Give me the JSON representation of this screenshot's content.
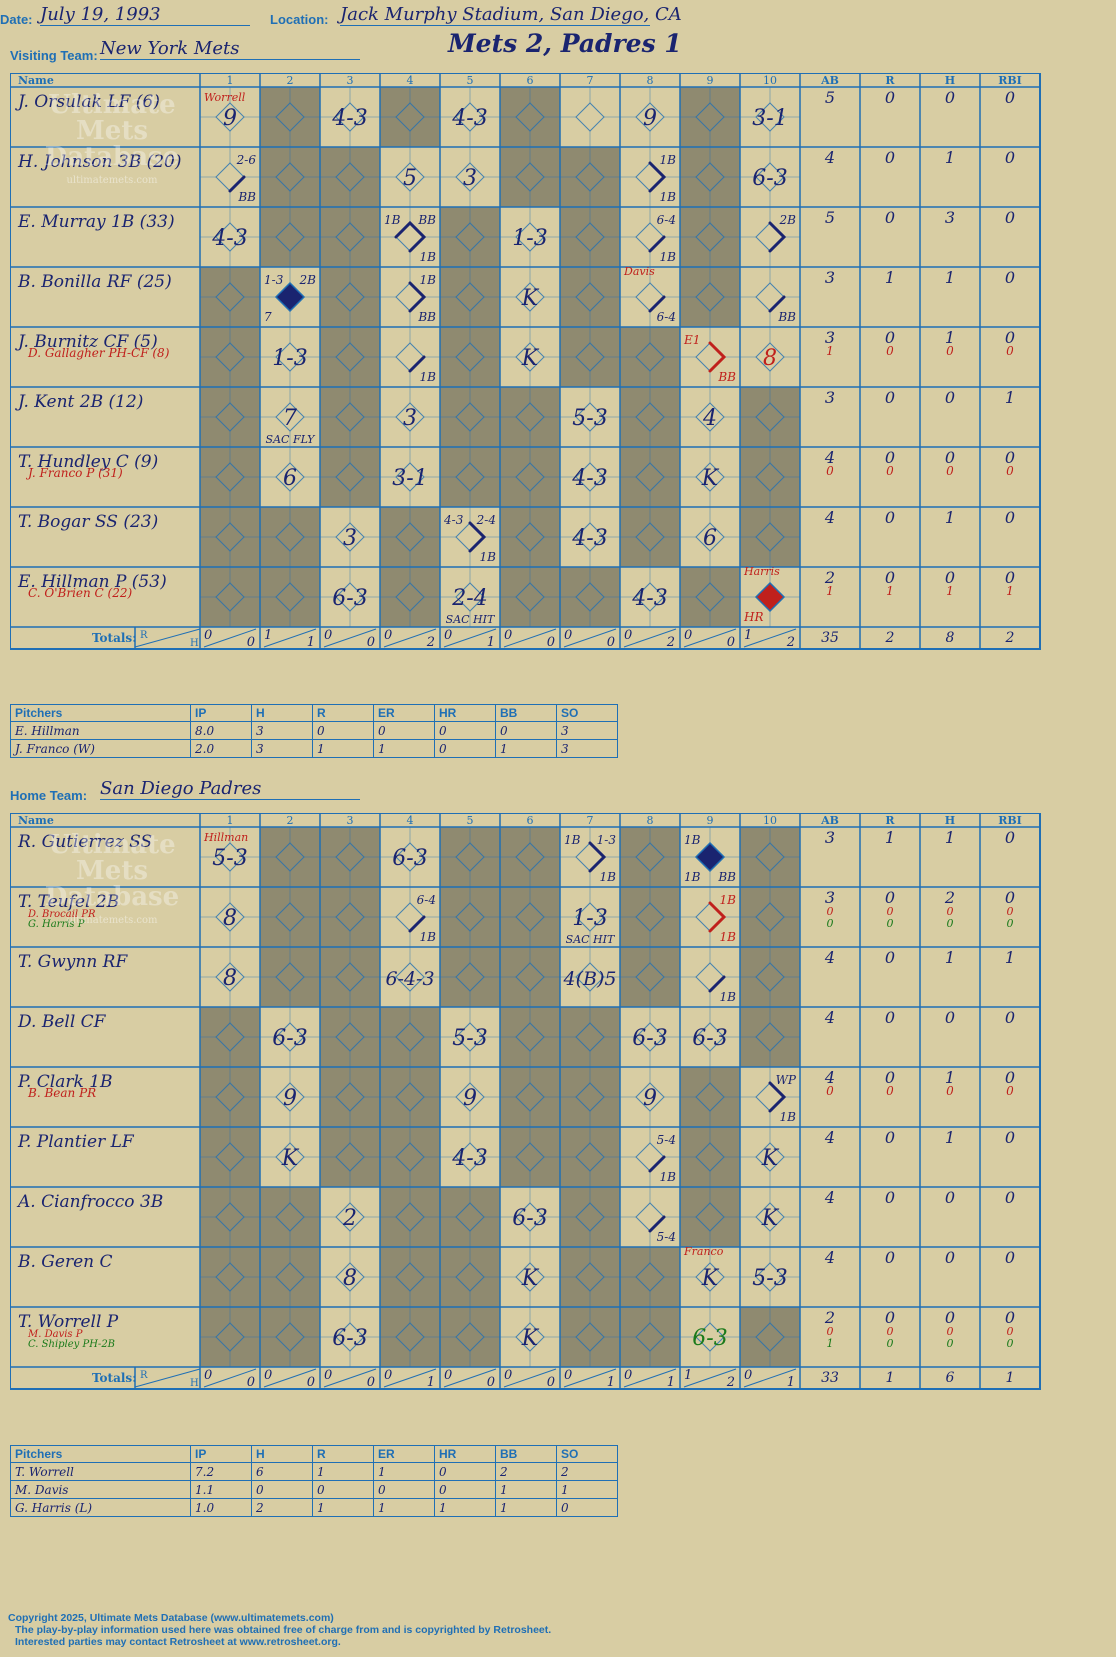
{
  "header": {
    "date_label": "Date:",
    "date": "July 19, 1993",
    "location_label": "Location:",
    "location": "Jack Murphy Stadium, San Diego, CA",
    "visiting_label": "Visiting Team:",
    "visiting_team": "New York Mets",
    "home_label": "Home Team:",
    "home_team": "San Diego Padres",
    "title": "Mets 2, Padres 1"
  },
  "watermark": [
    "Ultimate",
    "Mets",
    "Database",
    "ultimatemets.com"
  ],
  "grid_headers": {
    "name": "Name",
    "innings": [
      "1",
      "2",
      "3",
      "4",
      "5",
      "6",
      "7",
      "8",
      "9",
      "10"
    ],
    "stats": [
      "AB",
      "R",
      "H",
      "RBI"
    ],
    "totals": "Totals:",
    "r": "R",
    "h": "H"
  },
  "colors": {
    "ink": "#1a2470",
    "line": "#1f6fb5",
    "shade": "#8f8a70",
    "red": "#c0201c",
    "green": "#1a7a1a",
    "bg": "#d8cda3"
  },
  "visitors": {
    "players": [
      {
        "names": [
          "J. Orsulak LF (6)"
        ],
        "stats": [
          [
            "5",
            "0",
            "0",
            "0"
          ]
        ]
      },
      {
        "names": [
          "H. Johnson 3B (20)"
        ],
        "stats": [
          [
            "4",
            "0",
            "1",
            "0"
          ]
        ]
      },
      {
        "names": [
          "E. Murray 1B (33)"
        ],
        "stats": [
          [
            "5",
            "0",
            "3",
            "0"
          ]
        ]
      },
      {
        "names": [
          "B. Bonilla RF (25)"
        ],
        "stats": [
          [
            "3",
            "1",
            "1",
            "0"
          ]
        ]
      },
      {
        "names": [
          "J. Burnitz CF (5)",
          "D. Gallagher PH-CF (8)"
        ],
        "stats": [
          [
            "3",
            "0",
            "1",
            "0"
          ],
          [
            "1",
            "0",
            "0",
            "0"
          ]
        ]
      },
      {
        "names": [
          "J. Kent 2B (12)"
        ],
        "stats": [
          [
            "3",
            "0",
            "0",
            "1"
          ]
        ]
      },
      {
        "names": [
          "T. Hundley C (9)",
          "J. Franco P (31)"
        ],
        "stats": [
          [
            "4",
            "0",
            "0",
            "0"
          ],
          [
            "0",
            "0",
            "0",
            "0"
          ]
        ]
      },
      {
        "names": [
          "T. Bogar SS (23)"
        ],
        "stats": [
          [
            "4",
            "0",
            "1",
            "0"
          ]
        ]
      },
      {
        "names": [
          "E. Hillman P (53)",
          "C. O'Brien C (22)"
        ],
        "stats": [
          [
            "2",
            "0",
            "0",
            "0"
          ],
          [
            "1",
            "1",
            "1",
            "1"
          ]
        ]
      }
    ],
    "shaded": [
      [
        0,
        1,
        0,
        1,
        0,
        1,
        0,
        0,
        1,
        0
      ],
      [
        0,
        1,
        1,
        0,
        0,
        1,
        1,
        0,
        1,
        0
      ],
      [
        0,
        1,
        1,
        0,
        1,
        0,
        1,
        0,
        1,
        0
      ],
      [
        1,
        0,
        1,
        0,
        1,
        0,
        1,
        0,
        1,
        0
      ],
      [
        1,
        0,
        1,
        0,
        1,
        0,
        1,
        1,
        0,
        0
      ],
      [
        1,
        0,
        1,
        0,
        1,
        1,
        0,
        1,
        0,
        1
      ],
      [
        1,
        0,
        1,
        0,
        1,
        1,
        0,
        1,
        0,
        1
      ],
      [
        1,
        1,
        0,
        1,
        0,
        1,
        0,
        1,
        0,
        1
      ],
      [
        1,
        1,
        0,
        1,
        0,
        1,
        1,
        0,
        1,
        0
      ]
    ],
    "cells": [
      {
        "r": 0,
        "i": 0,
        "t": "9",
        "tag": "Worrell"
      },
      {
        "r": 0,
        "i": 2,
        "t": "4-3"
      },
      {
        "r": 0,
        "i": 4,
        "t": "4-3"
      },
      {
        "r": 0,
        "i": 7,
        "t": "9"
      },
      {
        "r": 0,
        "i": 9,
        "t": "3-1"
      },
      {
        "r": 1,
        "i": 0,
        "tr": "2-6",
        "br": "BB",
        "p": [
          1
        ]
      },
      {
        "r": 1,
        "i": 3,
        "t": "5"
      },
      {
        "r": 1,
        "i": 4,
        "t": "3"
      },
      {
        "r": 1,
        "i": 7,
        "tr": "1B",
        "br": "1B",
        "p": [
          1,
          2
        ]
      },
      {
        "r": 1,
        "i": 9,
        "t": "6-3"
      },
      {
        "r": 2,
        "i": 0,
        "t": "4-3"
      },
      {
        "r": 2,
        "i": 3,
        "tl": "1B",
        "tr": "BB",
        "br": "1B",
        "p": [
          1,
          2,
          3
        ]
      },
      {
        "r": 2,
        "i": 5,
        "t": "1-3"
      },
      {
        "r": 2,
        "i": 7,
        "tr": "6-4",
        "br": "1B",
        "p": [
          1
        ]
      },
      {
        "r": 2,
        "i": 9,
        "tr": "2B",
        "p": [
          1,
          2
        ]
      },
      {
        "r": 3,
        "i": 1,
        "tl": "1-3",
        "tr": "2B",
        "bl": "7",
        "run": 1
      },
      {
        "r": 3,
        "i": 3,
        "tr": "1B",
        "br": "BB",
        "p": [
          1,
          2
        ]
      },
      {
        "r": 3,
        "i": 5,
        "t": "K"
      },
      {
        "r": 3,
        "i": 7,
        "br": "6-4",
        "p": [
          1
        ],
        "tag": "Davis"
      },
      {
        "r": 3,
        "i": 9,
        "br": "BB",
        "p": [
          1
        ]
      },
      {
        "r": 4,
        "i": 1,
        "t": "1-3"
      },
      {
        "r": 4,
        "i": 3,
        "br": "1B",
        "p": [
          1
        ]
      },
      {
        "r": 4,
        "i": 5,
        "t": "K"
      },
      {
        "r": 4,
        "i": 8,
        "tl": "E1",
        "br": "BB",
        "p": [
          1,
          2
        ],
        "red": 1
      },
      {
        "r": 4,
        "i": 9,
        "t": "8",
        "red": 1
      },
      {
        "r": 5,
        "i": 1,
        "t": "7",
        "bt": "SAC FLY"
      },
      {
        "r": 5,
        "i": 3,
        "t": "3"
      },
      {
        "r": 5,
        "i": 6,
        "t": "5-3"
      },
      {
        "r": 5,
        "i": 8,
        "t": "4"
      },
      {
        "r": 6,
        "i": 1,
        "t": "6"
      },
      {
        "r": 6,
        "i": 3,
        "t": "3-1"
      },
      {
        "r": 6,
        "i": 6,
        "t": "4-3"
      },
      {
        "r": 6,
        "i": 8,
        "t": "K"
      },
      {
        "r": 7,
        "i": 2,
        "t": "3"
      },
      {
        "r": 7,
        "i": 4,
        "tl": "4-3",
        "tr": "2-4",
        "br": "1B",
        "p": [
          1,
          2
        ]
      },
      {
        "r": 7,
        "i": 6,
        "t": "4-3"
      },
      {
        "r": 7,
        "i": 8,
        "t": "6"
      },
      {
        "r": 8,
        "i": 2,
        "t": "6-3"
      },
      {
        "r": 8,
        "i": 4,
        "t": "2-4",
        "bt": "SAC HIT"
      },
      {
        "r": 8,
        "i": 7,
        "t": "4-3"
      },
      {
        "r": 8,
        "i": 9,
        "bl": "HR",
        "run": 2,
        "tag": "Harris",
        "red": 1
      }
    ],
    "totals": [
      [
        "0",
        "0"
      ],
      [
        "1",
        "1"
      ],
      [
        "0",
        "0"
      ],
      [
        "0",
        "2"
      ],
      [
        "0",
        "1"
      ],
      [
        "0",
        "0"
      ],
      [
        "0",
        "0"
      ],
      [
        "0",
        "2"
      ],
      [
        "0",
        "0"
      ],
      [
        "1",
        "2"
      ]
    ],
    "stat_totals": [
      "35",
      "2",
      "8",
      "2"
    ],
    "pitchers": {
      "headers": [
        "Pitchers",
        "IP",
        "H",
        "R",
        "ER",
        "HR",
        "BB",
        "SO"
      ],
      "rows": [
        [
          "E. Hillman",
          "8.0",
          "3",
          "0",
          "0",
          "0",
          "0",
          "3"
        ],
        [
          "J. Franco (W)",
          "2.0",
          "3",
          "1",
          "1",
          "0",
          "1",
          "3"
        ]
      ]
    }
  },
  "home": {
    "players": [
      {
        "names": [
          "R. Gutierrez SS"
        ],
        "stats": [
          [
            "3",
            "1",
            "1",
            "0"
          ]
        ]
      },
      {
        "names": [
          "T. Teufel 2B",
          "D. Brocail PR",
          "G. Harris P"
        ],
        "stats": [
          [
            "3",
            "0",
            "2",
            "0"
          ],
          [
            "0",
            "0",
            "0",
            "0"
          ],
          [
            "0",
            "0",
            "0",
            "0"
          ]
        ]
      },
      {
        "names": [
          "T. Gwynn RF"
        ],
        "stats": [
          [
            "4",
            "0",
            "1",
            "1"
          ]
        ]
      },
      {
        "names": [
          "D. Bell CF"
        ],
        "stats": [
          [
            "4",
            "0",
            "0",
            "0"
          ]
        ]
      },
      {
        "names": [
          "P. Clark 1B",
          "B. Bean PR"
        ],
        "stats": [
          [
            "4",
            "0",
            "1",
            "0"
          ],
          [
            "0",
            "0",
            "0",
            "0"
          ]
        ]
      },
      {
        "names": [
          "P. Plantier LF"
        ],
        "stats": [
          [
            "4",
            "0",
            "1",
            "0"
          ]
        ]
      },
      {
        "names": [
          "A. Cianfrocco 3B"
        ],
        "stats": [
          [
            "4",
            "0",
            "0",
            "0"
          ]
        ]
      },
      {
        "names": [
          "B. Geren C"
        ],
        "stats": [
          [
            "4",
            "0",
            "0",
            "0"
          ]
        ]
      },
      {
        "names": [
          "T. Worrell P",
          "M. Davis P",
          "C. Shipley PH-2B"
        ],
        "stats": [
          [
            "2",
            "0",
            "0",
            "0"
          ],
          [
            "0",
            "0",
            "0",
            "0"
          ],
          [
            "1",
            "0",
            "0",
            "0"
          ]
        ]
      }
    ],
    "shaded": [
      [
        0,
        1,
        1,
        0,
        1,
        1,
        0,
        1,
        0,
        1
      ],
      [
        0,
        1,
        1,
        0,
        1,
        1,
        0,
        1,
        0,
        1
      ],
      [
        0,
        1,
        1,
        0,
        1,
        1,
        0,
        1,
        0,
        1
      ],
      [
        1,
        0,
        1,
        1,
        0,
        1,
        1,
        0,
        0,
        1
      ],
      [
        1,
        0,
        1,
        1,
        0,
        1,
        1,
        0,
        1,
        0
      ],
      [
        1,
        0,
        1,
        1,
        0,
        1,
        1,
        0,
        1,
        0
      ],
      [
        1,
        1,
        0,
        1,
        1,
        0,
        1,
        0,
        1,
        0
      ],
      [
        1,
        1,
        0,
        1,
        1,
        0,
        1,
        1,
        0,
        0
      ],
      [
        1,
        1,
        0,
        1,
        1,
        0,
        1,
        1,
        0,
        1
      ]
    ],
    "cells": [
      {
        "r": 0,
        "i": 0,
        "t": "5-3",
        "tag": "Hillman"
      },
      {
        "r": 0,
        "i": 3,
        "t": "6-3"
      },
      {
        "r": 0,
        "i": 6,
        "tl": "1B",
        "tr": "1-3",
        "br": "1B",
        "p": [
          1,
          2
        ]
      },
      {
        "r": 0,
        "i": 8,
        "tl": "1B",
        "bl": "1B",
        "br": "BB",
        "run": 1
      },
      {
        "r": 1,
        "i": 0,
        "t": "8"
      },
      {
        "r": 1,
        "i": 3,
        "tr": "6-4",
        "br": "1B",
        "p": [
          1
        ]
      },
      {
        "r": 1,
        "i": 6,
        "t": "1-3",
        "bt": "SAC HIT"
      },
      {
        "r": 1,
        "i": 8,
        "tr": "1B",
        "br": "1B",
        "p": [
          1,
          2
        ],
        "red": 1
      },
      {
        "r": 2,
        "i": 0,
        "t": "8"
      },
      {
        "r": 2,
        "i": 3,
        "t": "6-4-3"
      },
      {
        "r": 2,
        "i": 6,
        "t": "4(B)5"
      },
      {
        "r": 2,
        "i": 8,
        "br": "1B",
        "p": [
          1
        ]
      },
      {
        "r": 3,
        "i": 1,
        "t": "6-3"
      },
      {
        "r": 3,
        "i": 4,
        "t": "5-3"
      },
      {
        "r": 3,
        "i": 7,
        "t": "6-3"
      },
      {
        "r": 3,
        "i": 8,
        "t": "6-3"
      },
      {
        "r": 4,
        "i": 1,
        "t": "9"
      },
      {
        "r": 4,
        "i": 4,
        "t": "9"
      },
      {
        "r": 4,
        "i": 7,
        "t": "9"
      },
      {
        "r": 4,
        "i": 9,
        "tr": "WP",
        "br": "1B",
        "p": [
          1,
          2
        ]
      },
      {
        "r": 5,
        "i": 1,
        "t": "K"
      },
      {
        "r": 5,
        "i": 4,
        "t": "4-3"
      },
      {
        "r": 5,
        "i": 7,
        "tr": "5-4",
        "br": "1B",
        "p": [
          1
        ]
      },
      {
        "r": 5,
        "i": 9,
        "t": "K"
      },
      {
        "r": 6,
        "i": 2,
        "t": "2"
      },
      {
        "r": 6,
        "i": 5,
        "t": "6-3"
      },
      {
        "r": 6,
        "i": 7,
        "br": "5-4",
        "p": [
          1
        ]
      },
      {
        "r": 6,
        "i": 9,
        "t": "K"
      },
      {
        "r": 7,
        "i": 2,
        "t": "8"
      },
      {
        "r": 7,
        "i": 5,
        "t": "K"
      },
      {
        "r": 7,
        "i": 8,
        "t": "K",
        "tag": "Franco"
      },
      {
        "r": 7,
        "i": 9,
        "t": "5-3"
      },
      {
        "r": 8,
        "i": 2,
        "t": "6-3"
      },
      {
        "r": 8,
        "i": 5,
        "t": "K"
      },
      {
        "r": 8,
        "i": 8,
        "t": "6-3",
        "green": 1
      }
    ],
    "totals": [
      [
        "0",
        "0"
      ],
      [
        "0",
        "0"
      ],
      [
        "0",
        "0"
      ],
      [
        "0",
        "1"
      ],
      [
        "0",
        "0"
      ],
      [
        "0",
        "0"
      ],
      [
        "0",
        "1"
      ],
      [
        "0",
        "1"
      ],
      [
        "1",
        "2"
      ],
      [
        "0",
        "1"
      ]
    ],
    "stat_totals": [
      "33",
      "1",
      "6",
      "1"
    ],
    "pitchers": {
      "headers": [
        "Pitchers",
        "IP",
        "H",
        "R",
        "ER",
        "HR",
        "BB",
        "SO"
      ],
      "rows": [
        [
          "T. Worrell",
          "7.2",
          "6",
          "1",
          "1",
          "0",
          "2",
          "2"
        ],
        [
          "M. Davis",
          "1.1",
          "0",
          "0",
          "0",
          "0",
          "1",
          "1"
        ],
        [
          "G. Harris (L)",
          "1.0",
          "2",
          "1",
          "1",
          "1",
          "1",
          "0"
        ]
      ]
    }
  },
  "footer": [
    "Copyright 2025, Ultimate Mets Database (www.ultimatemets.com)",
    "The play-by-play information used here was obtained free of charge from and is copyrighted by Retrosheet.",
    "Interested parties may contact Retrosheet at www.retrosheet.org."
  ]
}
